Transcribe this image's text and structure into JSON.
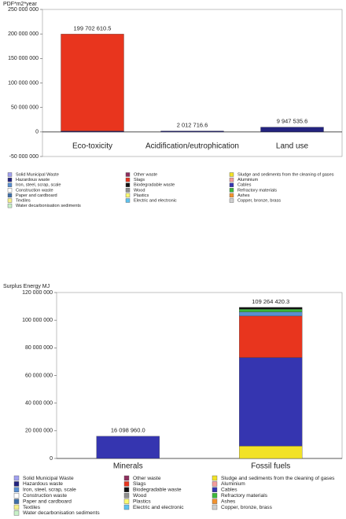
{
  "chart_data": [
    {
      "type": "stacked_bar",
      "y_label": "PDF*m2*year",
      "categories": [
        "Eco-toxicity",
        "Acidification/eutrophication",
        "Land use"
      ],
      "totals": [
        199702610.5,
        2012716.6,
        9947535.6
      ],
      "total_labels": [
        "199 702 610.5",
        "2 012 716.6",
        "9 947 535.6"
      ],
      "ylim": [
        -50000000,
        250000000
      ],
      "yticks": [
        {
          "value": -50000000,
          "label": "-50 000 000"
        },
        0,
        {
          "value": 50000000,
          "label": "50 000 000"
        },
        {
          "value": 100000000,
          "label": "100 000 000"
        },
        {
          "value": 150000000,
          "label": "150 000 000"
        },
        {
          "value": 200000000,
          "label": "200 000 000"
        },
        {
          "value": 250000000,
          "label": "250 000 000"
        }
      ],
      "series": [
        {
          "name": "Sludge and sediments from the cleaning of gases",
          "color": "#f2e227",
          "values": [
            0,
            0,
            0
          ]
        },
        {
          "name": "Hazardous waste",
          "color": "#23237e",
          "values": [
            2000000,
            2012716.6,
            9947535.6
          ]
        },
        {
          "name": "Cables",
          "color": "#3535b0",
          "values": [
            0,
            0,
            0
          ]
        },
        {
          "name": "Slags",
          "color": "#e8351e",
          "values": [
            197702610.5,
            0,
            0
          ]
        },
        {
          "name": "Iron, steel, scrap, scale",
          "color": "#5a8fd0",
          "values": [
            0,
            0,
            0
          ]
        },
        {
          "name": "Refractory materials",
          "color": "#3cb83c",
          "values": [
            0,
            0,
            0
          ]
        },
        {
          "name": "Biodegradable waste",
          "color": "#111111",
          "values": [
            0,
            0,
            0
          ]
        },
        {
          "name": "Solid Municipal Waste",
          "color": "#a0a0f0",
          "values": [
            0,
            0,
            0
          ]
        },
        {
          "name": "Construction waste",
          "color": "#ffffff",
          "values": [
            0,
            0,
            0
          ]
        },
        {
          "name": "Paper and cardboard",
          "color": "#3f6fa8",
          "values": [
            0,
            0,
            0
          ]
        },
        {
          "name": "Textiles",
          "color": "#f5f08a",
          "values": [
            0,
            0,
            0
          ]
        },
        {
          "name": "Water decarbonisation sediments",
          "color": "#c8f0c8",
          "values": [
            0,
            0,
            0
          ]
        },
        {
          "name": "Other waste",
          "color": "#8e2f5e",
          "values": [
            0,
            0,
            0
          ]
        },
        {
          "name": "Wood",
          "color": "#8f8f8f",
          "values": [
            0,
            0,
            0
          ]
        },
        {
          "name": "Plastics",
          "color": "#fafa70",
          "values": [
            0,
            0,
            0
          ]
        },
        {
          "name": "Electric and electronic",
          "color": "#5fc3ef",
          "values": [
            0,
            0,
            0
          ]
        },
        {
          "name": "Aluminium",
          "color": "#f59c9c",
          "values": [
            0,
            0,
            0
          ]
        },
        {
          "name": "Ashes",
          "color": "#f2922e",
          "values": [
            0,
            0,
            0
          ]
        },
        {
          "name": "Copper, bronze, brass",
          "color": "#cfcfcf",
          "values": [
            0,
            0,
            0
          ]
        }
      ]
    },
    {
      "type": "stacked_bar",
      "y_label": "Surplus Energy MJ",
      "categories": [
        "Minerals",
        "Fossil fuels"
      ],
      "totals": [
        16098960.0,
        109264420.3
      ],
      "total_labels": [
        "16 098 960.0",
        "109 264 420.3"
      ],
      "ylim": [
        0,
        120000000
      ],
      "yticks": [
        0,
        {
          "value": 20000000,
          "label": "20 000 000"
        },
        {
          "value": 40000000,
          "label": "40 000 000"
        },
        {
          "value": 60000000,
          "label": "60 000 000"
        },
        {
          "value": 80000000,
          "label": "80 000 000"
        },
        {
          "value": 100000000,
          "label": "100 000 000"
        },
        {
          "value": 120000000,
          "label": "120 000 000"
        }
      ],
      "series": [
        {
          "name": "Sludge and sediments from the cleaning of gases",
          "color": "#f2e227",
          "values": [
            0,
            9000000
          ]
        },
        {
          "name": "Hazardous waste",
          "color": "#23237e",
          "values": [
            0,
            0
          ]
        },
        {
          "name": "Cables",
          "color": "#3535b0",
          "values": [
            16098960.0,
            64000000
          ]
        },
        {
          "name": "Slags",
          "color": "#e8351e",
          "values": [
            0,
            30000000
          ]
        },
        {
          "name": "Iron, steel, scrap, scale",
          "color": "#5a8fd0",
          "values": [
            0,
            3000000
          ]
        },
        {
          "name": "Refractory materials",
          "color": "#3cb83c",
          "values": [
            0,
            2000000
          ]
        },
        {
          "name": "Biodegradable waste",
          "color": "#111111",
          "values": [
            0,
            1264420.3
          ]
        },
        {
          "name": "Solid Municipal Waste",
          "color": "#a0a0f0",
          "values": [
            0,
            0
          ]
        },
        {
          "name": "Construction waste",
          "color": "#ffffff",
          "values": [
            0,
            0
          ]
        },
        {
          "name": "Paper and cardboard",
          "color": "#3f6fa8",
          "values": [
            0,
            0
          ]
        },
        {
          "name": "Textiles",
          "color": "#f5f08a",
          "values": [
            0,
            0
          ]
        },
        {
          "name": "Water decarbonisation sediments",
          "color": "#c8f0c8",
          "values": [
            0,
            0
          ]
        },
        {
          "name": "Other waste",
          "color": "#8e2f5e",
          "values": [
            0,
            0
          ]
        },
        {
          "name": "Wood",
          "color": "#8f8f8f",
          "values": [
            0,
            0
          ]
        },
        {
          "name": "Plastics",
          "color": "#fafa70",
          "values": [
            0,
            0
          ]
        },
        {
          "name": "Electric and electronic",
          "color": "#5fc3ef",
          "values": [
            0,
            0
          ]
        },
        {
          "name": "Aluminium",
          "color": "#f59c9c",
          "values": [
            0,
            0
          ]
        },
        {
          "name": "Ashes",
          "color": "#f2922e",
          "values": [
            0,
            0
          ]
        },
        {
          "name": "Copper, bronze, brass",
          "color": "#cfcfcf",
          "values": [
            0,
            0
          ]
        }
      ]
    }
  ]
}
